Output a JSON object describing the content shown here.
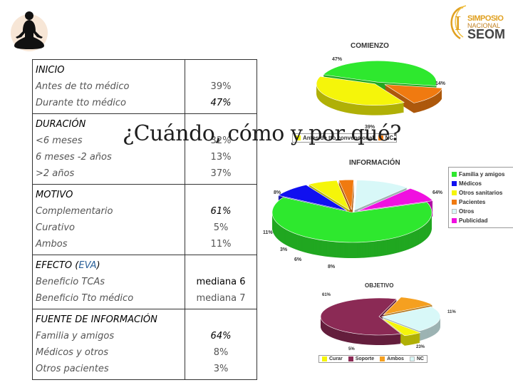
{
  "logo": {
    "line1": "SIMPOSIO",
    "line2": "NACIONAL",
    "line3": "SEOM",
    "roman": "I"
  },
  "title": "¿Cuándo, cómo y por qué?",
  "table": {
    "inicio": {
      "heading": "INICIO",
      "rows": [
        {
          "label": "Antes de tto médico",
          "value": "39%"
        },
        {
          "label": "Durante tto médico",
          "value": "47%"
        }
      ]
    },
    "duracion": {
      "heading": "DURACIÓN",
      "rows": [
        {
          "label": "<6 meses",
          "value": "32%"
        },
        {
          "label": "6 meses -2 años",
          "value": "13%"
        },
        {
          "label": ">2 años",
          "value": "37%"
        }
      ]
    },
    "motivo": {
      "heading": "MOTIVO",
      "rows": [
        {
          "label": "Complementario",
          "value": "61%"
        },
        {
          "label": "Curativo",
          "value": "5%"
        },
        {
          "label": "Ambos",
          "value": "11%"
        }
      ]
    },
    "efecto": {
      "heading": "EFECTO (",
      "heading_eva": "EVA",
      "heading_close": ")",
      "rows": [
        {
          "label": "Beneficio TCAs",
          "value": "mediana 6"
        },
        {
          "label": "Beneficio Tto médico",
          "value": "mediana 7"
        }
      ]
    },
    "fuente": {
      "heading": "FUENTE DE INFORMACIÓN",
      "rows": [
        {
          "label": "Familia y amigos",
          "value": "64%"
        },
        {
          "label": "Médicos y otros",
          "value": "8%"
        },
        {
          "label": "Otros pacientes",
          "value": "3%"
        }
      ]
    }
  },
  "chart_data": [
    {
      "type": "pie",
      "title": "COMIENZO",
      "categories": [
        "Antes de tto convencional",
        "Durante tto convencional",
        "Después tto convencional",
        "NC"
      ],
      "values": [
        39,
        47,
        0,
        14
      ],
      "labels": [
        "39%",
        "47%",
        "14%"
      ],
      "colors": [
        "#f5f50a",
        "#2ee82e",
        "#f07a10",
        "#f07a10"
      ],
      "legend_visible": [
        "Ant",
        "NC"
      ]
    },
    {
      "type": "pie",
      "title": "INFORMACIÓN",
      "categories": [
        "Familia y amigos",
        "Médicos",
        "Otros sanitarios",
        "Pacientes",
        "Otros",
        "Publicidad"
      ],
      "values": [
        64,
        8,
        6,
        3,
        11,
        8
      ],
      "labels": [
        "64%",
        "8%",
        "6%",
        "3%",
        "11%",
        "8%"
      ],
      "colors": [
        "#2ee82e",
        "#1010f0",
        "#f5f50a",
        "#f07a10",
        "#d8f8f8",
        "#f010e0"
      ],
      "legend_placement": "right"
    },
    {
      "type": "pie",
      "title": "OBJETIVO",
      "categories": [
        "Curar",
        "Soporte",
        "Ambos",
        "NC"
      ],
      "values": [
        5,
        61,
        11,
        23
      ],
      "labels": [
        "61%",
        "11%",
        "23%",
        "5%"
      ],
      "colors": [
        "#f5f50a",
        "#8b2a55",
        "#f5a020",
        "#d8f8f8"
      ],
      "legend_placement": "bottom"
    }
  ]
}
